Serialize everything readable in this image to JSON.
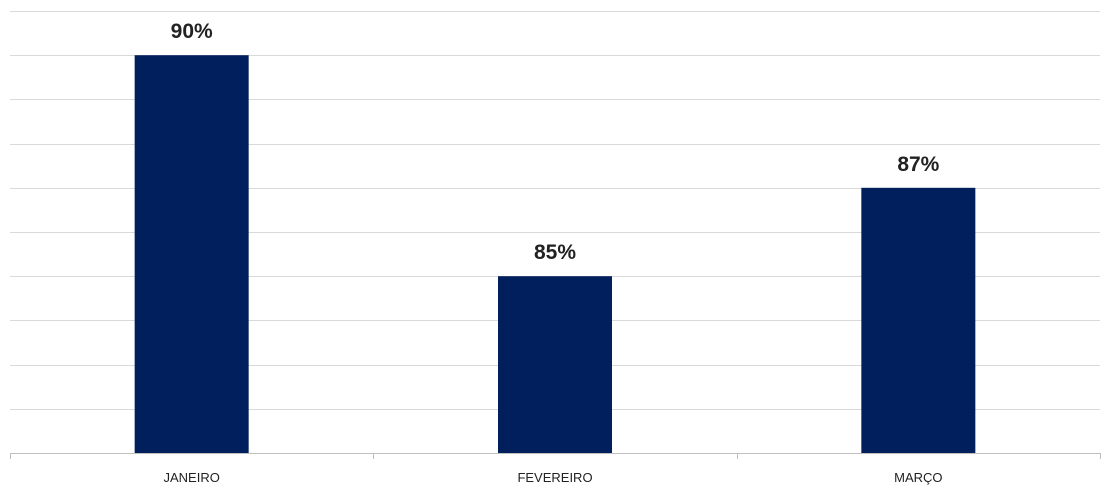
{
  "chart_data": {
    "type": "bar",
    "categories": [
      "JANEIRO",
      "FEVEREIRO",
      "MARÇO"
    ],
    "values": [
      90,
      85,
      87
    ],
    "data_labels": [
      "90%",
      "85%",
      "87%"
    ],
    "title": "",
    "xlabel": "",
    "ylabel": "",
    "ylim": [
      81,
      91
    ],
    "grid": true,
    "legend": "none",
    "bar_color": "#001F5C",
    "grid_color": "#D9D9D9",
    "axis_color": "#BFBFBF"
  }
}
